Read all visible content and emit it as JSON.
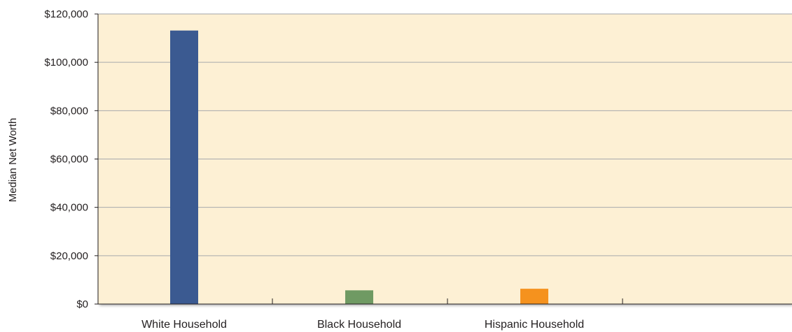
{
  "chart_data": {
    "type": "bar",
    "categories": [
      "White Household",
      "Black Household",
      "Hispanic Household"
    ],
    "values": [
      113149,
      5677,
      6325
    ],
    "colors": [
      "#3b5a91",
      "#6f9a63",
      "#f5921e"
    ],
    "plot_background": "#fdf0d4",
    "ylabel": "Median Net Worth",
    "ylim": [
      0,
      120000
    ],
    "yticks": [
      0,
      20000,
      40000,
      60000,
      80000,
      100000,
      120000
    ],
    "ytick_labels": [
      "$0",
      "$20,000",
      "$40,000",
      "$60,000",
      "$80,000",
      "$100,000",
      "$120,000"
    ],
    "grid": true,
    "legend": "none"
  }
}
